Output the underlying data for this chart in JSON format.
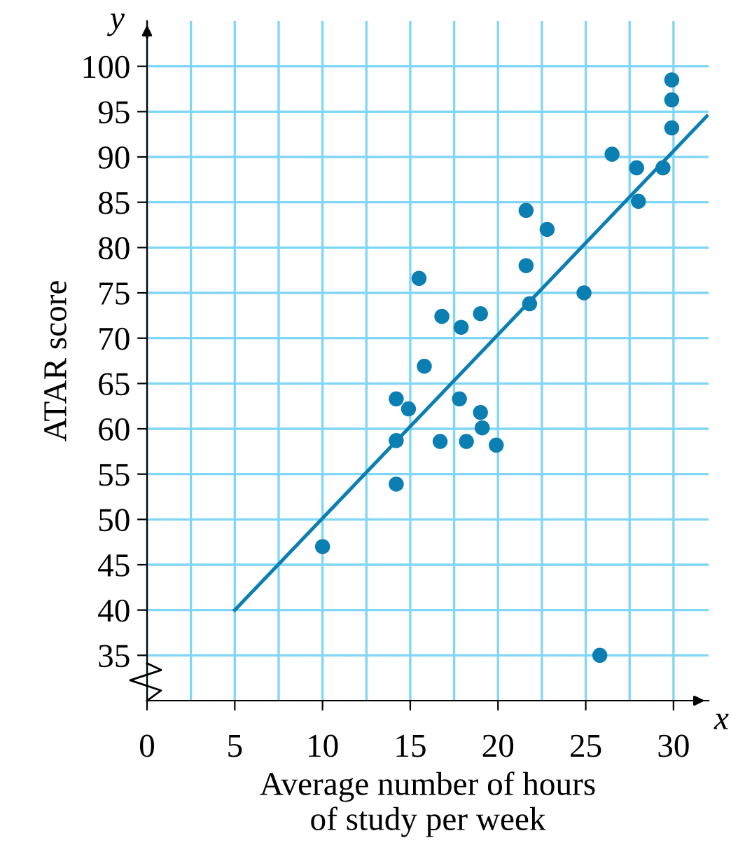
{
  "chart_data": {
    "type": "scatter",
    "xlabel": "Average number of hours\nof study per week",
    "ylabel": "ATAR score",
    "annotations": [
      "y",
      "x"
    ],
    "series": [
      {
        "color": "#0b7fb1",
        "marker": "circle",
        "x": [
          10,
          14.2,
          14.2,
          14.2,
          14.9,
          15.5,
          15.8,
          16.8,
          16.7,
          17.9,
          17.8,
          18.2,
          19,
          19,
          19.1,
          19.9,
          21.6,
          21.6,
          21.8,
          22.8,
          24.9,
          25.8,
          26.5,
          27.9,
          28,
          29.4,
          29.9,
          29.9,
          29.9
        ],
        "values": [
          47,
          63.3,
          58.7,
          53.9,
          62.2,
          76.6,
          66.9,
          72.4,
          58.6,
          71.2,
          63.3,
          58.6,
          72.7,
          61.8,
          60.1,
          58.2,
          84.1,
          78,
          73.8,
          82,
          75,
          35,
          90.3,
          88.8,
          85.1,
          88.8,
          98.5,
          96.3,
          93.2
        ]
      },
      {
        "type": "line",
        "color": "#0b7fb1",
        "x": [
          5,
          31.9
        ],
        "values": [
          40,
          94.5
        ]
      }
    ],
    "xlim": [
      0,
      32
    ],
    "ylim": [
      30,
      105
    ],
    "xticks": [
      {
        "value": 0,
        "label": "0"
      },
      {
        "value": 2.5,
        "label": null
      },
      5,
      {
        "value": 7.5,
        "label": null
      },
      10,
      {
        "value": 12.5,
        "label": null
      },
      15,
      {
        "value": 17.5,
        "label": null
      },
      20,
      {
        "value": 22.5,
        "label": null
      },
      25,
      {
        "value": 27.5,
        "label": null
      },
      30
    ],
    "yticks": [
      35,
      40,
      45,
      50,
      55,
      60,
      65,
      70,
      75,
      80,
      85,
      90,
      95,
      100
    ],
    "grid": true,
    "legend": false
  }
}
